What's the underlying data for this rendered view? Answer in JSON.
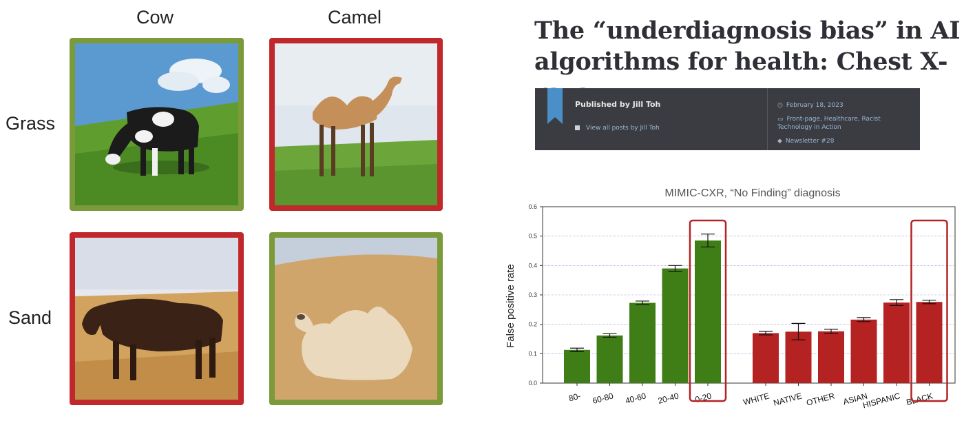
{
  "grid": {
    "col_labels": [
      "Cow",
      "Camel"
    ],
    "row_labels": [
      "Grass",
      "Sand"
    ],
    "tiles": [
      {
        "animal": "cow",
        "background": "grass",
        "status": "correct"
      },
      {
        "animal": "camel",
        "background": "grass",
        "status": "incorrect"
      },
      {
        "animal": "cow",
        "background": "sand",
        "status": "incorrect"
      },
      {
        "animal": "camel",
        "background": "sand",
        "status": "correct"
      }
    ]
  },
  "article": {
    "title": "The “underdiagnosis bias” in AI algorithms for health: Chest X-rays",
    "published_by": "Published by Jill Toh",
    "view_all": "View all posts by Jill Toh",
    "date": "February 18, 2023",
    "categories": "Front-page, Healthcare, Racist Technology in Action",
    "tag": "Newsletter #28"
  },
  "colors": {
    "correct_border": "#7b9a3a",
    "incorrect_border": "#c0282c",
    "age_bars": "#3f7d16",
    "race_bars": "#b52222",
    "highlight": "#b52222"
  },
  "chart_data": {
    "type": "bar",
    "title": "MIMIC-CXR, “No Finding” diagnosis",
    "ylabel": "False positive rate",
    "ylim": [
      0,
      0.6
    ],
    "yticks": [
      "0.0",
      "0.1",
      "0.2",
      "0.3",
      "0.4",
      "0.5",
      "0.6"
    ],
    "grid": true,
    "series": [
      {
        "categories": [
          "80-",
          "60-80",
          "40-60",
          "20-40",
          "0-20"
        ],
        "values": [
          0.113,
          0.162,
          0.273,
          0.39,
          0.485
        ],
        "errors": [
          0.006,
          0.006,
          0.006,
          0.01,
          0.022
        ],
        "color": "#3f7d16",
        "highlight": "0-20"
      },
      {
        "categories": [
          "WHITE",
          "NATIVE",
          "OTHER",
          "ASIAN",
          "HISPANIC",
          "BLACK"
        ],
        "values": [
          0.17,
          0.175,
          0.176,
          0.216,
          0.274,
          0.276
        ],
        "errors": [
          0.006,
          0.028,
          0.007,
          0.007,
          0.01,
          0.006
        ],
        "color": "#b52222",
        "highlight": "BLACK"
      }
    ]
  }
}
